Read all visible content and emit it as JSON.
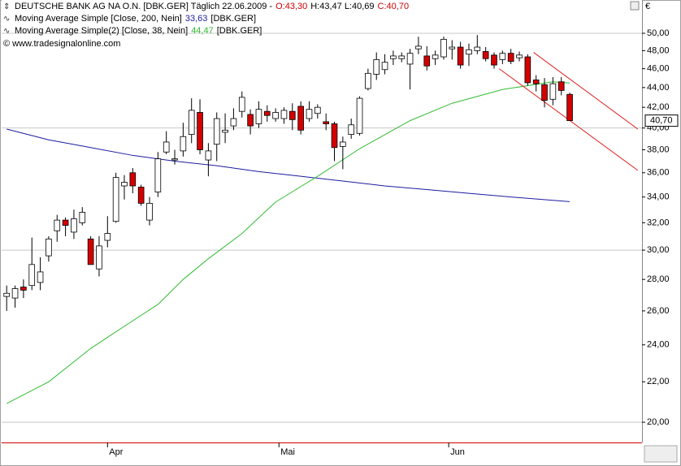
{
  "chart_data": {
    "type": "candlestick",
    "header": {
      "title": "DEUTSCHE BANK AG NA O.N. [DBK.GER]  Täglich 22.06.2009 -",
      "open_label": "O:43,30",
      "high_low_label": "H:43,47 L:40,69",
      "close_label": "C:40,70"
    },
    "copyright": "© www.tradesignalonline.com",
    "currency": "€",
    "up_color": "#ffffff",
    "down_color": "#d40000",
    "ylog": true,
    "ylim": [
      19.07,
      54.08
    ],
    "yticks": [
      {
        "value": 50,
        "label": "50,00"
      },
      {
        "value": 48,
        "label": "48,00"
      },
      {
        "value": 46,
        "label": "46,00"
      },
      {
        "value": 44,
        "label": "44,00"
      },
      {
        "value": 42,
        "label": "42,00"
      },
      {
        "value": 40,
        "label": "40,00"
      },
      {
        "value": 38,
        "label": "38,00"
      },
      {
        "value": 36,
        "label": "36,00"
      },
      {
        "value": 34,
        "label": "34,00"
      },
      {
        "value": 32,
        "label": "32,00"
      },
      {
        "value": 30,
        "label": "30,00"
      },
      {
        "value": 28,
        "label": "28,00"
      },
      {
        "value": 26,
        "label": "26,00"
      },
      {
        "value": 24,
        "label": "24,00"
      },
      {
        "value": 22,
        "label": "22,00"
      },
      {
        "value": 20,
        "label": "20,00"
      }
    ],
    "grid_step": 5,
    "xlim": [
      -0.6,
      75.6
    ],
    "xticks": [
      {
        "value": 12,
        "label": "Apr"
      },
      {
        "value": 32.4,
        "label": "Mai"
      },
      {
        "value": 52.6,
        "label": "Jun"
      }
    ],
    "x": [
      0,
      1,
      2,
      3,
      4,
      5,
      6,
      7,
      8,
      9,
      10,
      11,
      12,
      13,
      14,
      15,
      16,
      17,
      18,
      19,
      20,
      21,
      22,
      23,
      24,
      25,
      26,
      27,
      28,
      29,
      30,
      31,
      32,
      33,
      34,
      35,
      36,
      37,
      38,
      39,
      40,
      41,
      42,
      43,
      44,
      45,
      46,
      47,
      48,
      49,
      50,
      51,
      52,
      53,
      54,
      55,
      56,
      57,
      58,
      59,
      60,
      61,
      62,
      63,
      64,
      65,
      66,
      67
    ],
    "open": [
      26.9,
      26.8,
      27.5,
      27.6,
      27.8,
      29.6,
      31.4,
      32.2,
      31.3,
      32.0,
      30.8,
      28.7,
      30.7,
      32.1,
      34.9,
      36.0,
      34.8,
      32.2,
      34.4,
      37.8,
      37.1,
      37.9,
      39.4,
      41.5,
      37.1,
      38.5,
      39.6,
      40.2,
      41.6,
      41.3,
      40.4,
      41.6,
      40.9,
      40.9,
      41.6,
      42.1,
      40.9,
      41.4,
      40.6,
      40.4,
      38.3,
      39.4,
      39.5,
      43.9,
      45.4,
      45.9,
      47.1,
      47.1,
      46.5,
      48.2,
      47.4,
      47.1,
      47.3,
      48.2,
      48.4,
      47.6,
      48.0,
      47.9,
      47.5,
      47.0,
      47.7,
      47.2,
      47.3,
      44.8,
      44.3,
      42.8,
      44.6,
      43.3
    ],
    "high": [
      27.6,
      27.6,
      28.0,
      30.9,
      29.5,
      31.0,
      32.6,
      32.4,
      33.0,
      33.2,
      31.0,
      31.0,
      32.5,
      36.0,
      35.8,
      36.4,
      35.0,
      34.0,
      37.8,
      39.7,
      38.0,
      40.5,
      42.9,
      42.8,
      38.6,
      41.5,
      41.4,
      41.9,
      43.6,
      41.8,
      42.6,
      42.2,
      41.9,
      42.0,
      42.4,
      42.6,
      42.6,
      42.3,
      41.4,
      40.6,
      39.2,
      40.9,
      43.1,
      46.0,
      47.8,
      47.6,
      48.0,
      47.8,
      48.2,
      49.6,
      48.5,
      48.0,
      49.6,
      49.2,
      49.0,
      48.8,
      49.8,
      48.4,
      47.8,
      48.0,
      48.2,
      47.9,
      47.6,
      45.3,
      45.0,
      45.1,
      45.1,
      43.47
    ],
    "low": [
      26.0,
      26.2,
      26.8,
      27.3,
      27.3,
      29.2,
      30.6,
      31.0,
      30.8,
      31.8,
      29.0,
      28.2,
      30.2,
      32.0,
      33.8,
      34.3,
      33.3,
      31.8,
      34.0,
      37.6,
      36.7,
      37.4,
      38.6,
      37.6,
      35.7,
      37.0,
      38.6,
      39.8,
      41.0,
      39.4,
      40.0,
      40.6,
      40.6,
      40.4,
      39.8,
      39.4,
      40.6,
      40.9,
      39.8,
      37.0,
      36.3,
      39.0,
      39.3,
      43.7,
      44.8,
      45.4,
      46.4,
      46.7,
      43.8,
      47.6,
      45.8,
      46.4,
      47.0,
      47.0,
      46.0,
      46.3,
      47.6,
      46.8,
      46.0,
      46.5,
      46.5,
      46.8,
      44.2,
      43.6,
      42.0,
      42.2,
      43.2,
      40.69
    ],
    "close": [
      27.1,
      27.4,
      27.3,
      29.0,
      28.5,
      30.8,
      32.2,
      31.8,
      32.3,
      32.8,
      29.0,
      30.3,
      31.2,
      35.6,
      35.2,
      34.9,
      33.5,
      33.5,
      37.2,
      38.7,
      37.2,
      39.2,
      41.7,
      38.0,
      37.9,
      40.9,
      39.8,
      40.9,
      43.0,
      40.2,
      41.8,
      41.2,
      41.5,
      41.7,
      40.8,
      39.8,
      41.8,
      42.0,
      40.4,
      38.2,
      38.7,
      40.3,
      42.9,
      45.5,
      47.0,
      46.7,
      47.4,
      47.4,
      47.7,
      48.5,
      46.3,
      47.5,
      49.3,
      48.4,
      46.4,
      48.1,
      48.4,
      47.1,
      46.4,
      47.7,
      46.8,
      47.5,
      44.5,
      44.4,
      42.7,
      44.4,
      43.7,
      40.7
    ],
    "lines": [
      {
        "name": "Moving Average Simple [Close, 200, Nein]",
        "color": "#1c1ca0",
        "value_label": "33,63",
        "source": "[DBK.GER]",
        "x": [
          0,
          5,
          10,
          15,
          20,
          25,
          30,
          35,
          40,
          45,
          50,
          55,
          60,
          67
        ],
        "values": [
          39.9,
          38.9,
          38.2,
          37.5,
          37.0,
          36.6,
          36.1,
          35.7,
          35.3,
          34.9,
          34.6,
          34.3,
          34.0,
          33.63
        ]
      },
      {
        "name": "Moving Average Simple(2) [Close, 38, Nein]",
        "color": "#33bb33",
        "value_label": "44,47",
        "source": "[DBK.GER]",
        "x": [
          0,
          5,
          10,
          15,
          18,
          21,
          24,
          28,
          32,
          37,
          42,
          48,
          53,
          59,
          65,
          67
        ],
        "values": [
          20.9,
          22.0,
          23.8,
          25.4,
          26.4,
          28.0,
          29.4,
          31.2,
          33.6,
          35.7,
          38.1,
          40.7,
          42.4,
          43.8,
          44.6,
          44.47
        ]
      }
    ],
    "channel": {
      "color": "#e02020",
      "lines": [
        {
          "x": [
            62.7,
            75.1
          ],
          "values": [
            47.8,
            39.9
          ]
        },
        {
          "x": [
            58.6,
            75.1
          ],
          "values": [
            46.0,
            36.2
          ]
        }
      ]
    },
    "last_price": {
      "value": 40.7,
      "label": "40,70"
    }
  }
}
